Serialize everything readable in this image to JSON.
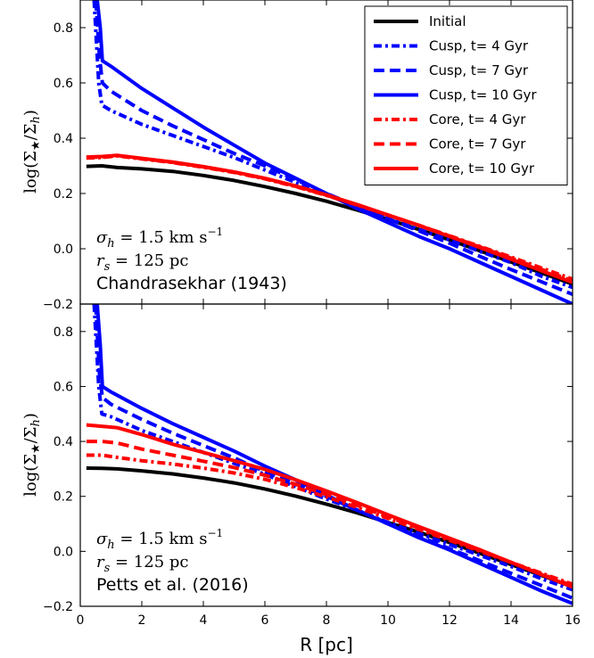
{
  "chart_data": [
    {
      "type": "line",
      "panel": "top",
      "ylabel": "log(Σ★/Σh)",
      "xlim": [
        0,
        16
      ],
      "ylim": [
        -0.2,
        0.9
      ],
      "yticks": [
        "−0.2",
        "0.0",
        "0.2",
        "0.4",
        "0.6",
        "0.8"
      ],
      "annotation": {
        "sigma": "σh = 1.5 km s⁻¹",
        "rs": "rs = 125 pc",
        "name": "Chandrasekhar (1943)"
      },
      "series": [
        {
          "name": "Initial",
          "color": "#000000",
          "style": "solid",
          "x": [
            0.2,
            0.7,
            1.2,
            2,
            3,
            4,
            5,
            6,
            7,
            8,
            9,
            10,
            11,
            12,
            13,
            14,
            15,
            16
          ],
          "y": [
            0.298,
            0.3,
            0.294,
            0.289,
            0.28,
            0.265,
            0.247,
            0.225,
            0.2,
            0.172,
            0.14,
            0.106,
            0.07,
            0.032,
            -0.008,
            -0.048,
            -0.088,
            -0.128
          ]
        },
        {
          "name": "Cusp, t= 4 Gyr",
          "color": "#0000ff",
          "style": "dashdot",
          "x": [
            0.45,
            0.6,
            0.7,
            1,
            2,
            3,
            4,
            5,
            6,
            7,
            8,
            9,
            10,
            11,
            12,
            13,
            14,
            15,
            16
          ],
          "y": [
            0.9,
            0.6,
            0.52,
            0.5,
            0.45,
            0.41,
            0.37,
            0.33,
            0.285,
            0.24,
            0.195,
            0.155,
            0.11,
            0.07,
            0.032,
            -0.01,
            -0.05,
            -0.1,
            -0.14
          ]
        },
        {
          "name": "Cusp, t= 7 Gyr",
          "color": "#0000ff",
          "style": "dashed",
          "x": [
            0.5,
            0.62,
            0.72,
            1,
            2,
            3,
            4,
            5,
            6,
            7,
            8,
            9,
            10,
            11,
            12,
            13,
            14,
            15,
            16
          ],
          "y": [
            0.9,
            0.7,
            0.6,
            0.57,
            0.5,
            0.445,
            0.395,
            0.345,
            0.3,
            0.25,
            0.2,
            0.155,
            0.108,
            0.065,
            0.02,
            -0.028,
            -0.075,
            -0.12,
            -0.165
          ]
        },
        {
          "name": "Cusp, t= 10 Gyr",
          "color": "#0000ff",
          "style": "solid",
          "x": [
            0.55,
            0.65,
            0.72,
            1,
            2,
            3,
            4,
            5,
            6,
            7,
            8,
            9,
            10,
            11,
            12,
            13,
            14,
            15,
            16
          ],
          "y": [
            0.9,
            0.8,
            0.68,
            0.66,
            0.58,
            0.51,
            0.44,
            0.375,
            0.31,
            0.255,
            0.2,
            0.145,
            0.095,
            0.045,
            0,
            -0.05,
            -0.1,
            -0.15,
            -0.2
          ]
        },
        {
          "name": "Core, t= 4 Gyr",
          "color": "#ff0000",
          "style": "dashdot",
          "x": [
            0.2,
            0.7,
            1.2,
            2,
            3,
            4,
            5,
            6,
            7,
            8,
            9,
            10,
            11,
            12,
            13,
            14,
            15,
            16
          ],
          "y": [
            0.328,
            0.33,
            0.336,
            0.325,
            0.312,
            0.295,
            0.276,
            0.253,
            0.225,
            0.193,
            0.158,
            0.122,
            0.085,
            0.047,
            0.008,
            -0.03,
            -0.07,
            -0.11
          ]
        },
        {
          "name": "Core, t= 7 Gyr",
          "color": "#ff0000",
          "style": "dashed",
          "x": [
            0.2,
            0.7,
            1.2,
            2,
            3,
            4,
            5,
            6,
            7,
            8,
            9,
            10,
            11,
            12,
            13,
            14,
            15,
            16
          ],
          "y": [
            0.33,
            0.332,
            0.337,
            0.326,
            0.313,
            0.296,
            0.277,
            0.254,
            0.226,
            0.194,
            0.159,
            0.122,
            0.085,
            0.046,
            0.006,
            -0.034,
            -0.075,
            -0.116
          ]
        },
        {
          "name": "Core, t= 10 Gyr",
          "color": "#ff0000",
          "style": "solid",
          "x": [
            0.2,
            0.7,
            1.2,
            2,
            3,
            4,
            5,
            6,
            7,
            8,
            9,
            10,
            11,
            12,
            13,
            14,
            15,
            16
          ],
          "y": [
            0.332,
            0.334,
            0.338,
            0.327,
            0.314,
            0.297,
            0.278,
            0.255,
            0.227,
            0.195,
            0.16,
            0.122,
            0.085,
            0.045,
            0.004,
            -0.038,
            -0.08,
            -0.122
          ]
        }
      ]
    },
    {
      "type": "line",
      "panel": "bottom",
      "xlabel": "R [pc]",
      "ylabel": "log(Σ★/Σh)",
      "xlim": [
        0,
        16
      ],
      "ylim": [
        -0.2,
        0.9
      ],
      "xticks": [
        "0",
        "2",
        "4",
        "6",
        "8",
        "10",
        "12",
        "14",
        "16"
      ],
      "yticks": [
        "−0.2",
        "0.0",
        "0.2",
        "0.4",
        "0.6",
        "0.8"
      ],
      "annotation": {
        "sigma": "σh = 1.5 km s⁻¹",
        "rs": "rs = 125 pc",
        "name": "Petts et al. (2016)"
      },
      "series": [
        {
          "name": "Initial",
          "color": "#000000",
          "style": "solid",
          "x": [
            0.2,
            0.7,
            1.2,
            2,
            3,
            4,
            5,
            6,
            7,
            8,
            9,
            10,
            11,
            12,
            13,
            14,
            15,
            16
          ],
          "y": [
            0.303,
            0.302,
            0.3,
            0.293,
            0.282,
            0.267,
            0.249,
            0.227,
            0.201,
            0.172,
            0.14,
            0.105,
            0.07,
            0.032,
            -0.008,
            -0.048,
            -0.088,
            -0.13
          ]
        },
        {
          "name": "Cusp, t= 4 Gyr",
          "color": "#0000ff",
          "style": "dashdot",
          "x": [
            0.45,
            0.6,
            0.7,
            1,
            2,
            3,
            4,
            5,
            6,
            7,
            8,
            9,
            10,
            11,
            12,
            13,
            14,
            15,
            16
          ],
          "y": [
            0.9,
            0.6,
            0.5,
            0.49,
            0.44,
            0.4,
            0.36,
            0.32,
            0.28,
            0.235,
            0.19,
            0.15,
            0.105,
            0.065,
            0.025,
            -0.015,
            -0.055,
            -0.1,
            -0.14
          ]
        },
        {
          "name": "Cusp, t= 7 Gyr",
          "color": "#0000ff",
          "style": "dashed",
          "x": [
            0.5,
            0.62,
            0.72,
            1,
            2,
            3,
            4,
            5,
            6,
            7,
            8,
            9,
            10,
            11,
            12,
            13,
            14,
            15,
            16
          ],
          "y": [
            0.9,
            0.65,
            0.56,
            0.535,
            0.48,
            0.43,
            0.385,
            0.34,
            0.29,
            0.245,
            0.2,
            0.15,
            0.1,
            0.055,
            0.01,
            -0.035,
            -0.08,
            -0.125,
            -0.17
          ]
        },
        {
          "name": "Cusp, t= 10 Gyr",
          "color": "#0000ff",
          "style": "solid",
          "x": [
            0.55,
            0.65,
            0.72,
            1,
            2,
            3,
            4,
            5,
            6,
            7,
            8,
            9,
            10,
            11,
            12,
            13,
            14,
            15,
            16
          ],
          "y": [
            0.9,
            0.75,
            0.6,
            0.58,
            0.52,
            0.465,
            0.415,
            0.365,
            0.31,
            0.26,
            0.205,
            0.15,
            0.1,
            0.05,
            0.005,
            -0.045,
            -0.095,
            -0.145,
            -0.19
          ]
        },
        {
          "name": "Core, t= 4 Gyr",
          "color": "#ff0000",
          "style": "dashdot",
          "x": [
            0.2,
            0.7,
            1.2,
            2,
            3,
            4,
            5,
            6,
            7,
            8,
            9,
            10,
            11,
            12,
            13,
            14,
            15,
            16
          ],
          "y": [
            0.35,
            0.35,
            0.342,
            0.33,
            0.318,
            0.303,
            0.285,
            0.262,
            0.232,
            0.198,
            0.16,
            0.12,
            0.08,
            0.04,
            0,
            -0.04,
            -0.08,
            -0.12
          ]
        },
        {
          "name": "Core, t= 7 Gyr",
          "color": "#ff0000",
          "style": "dashed",
          "x": [
            0.2,
            0.7,
            1.2,
            2,
            3,
            4,
            5,
            6,
            7,
            8,
            9,
            10,
            11,
            12,
            13,
            14,
            15,
            16
          ],
          "y": [
            0.4,
            0.4,
            0.394,
            0.372,
            0.35,
            0.328,
            0.305,
            0.277,
            0.244,
            0.207,
            0.167,
            0.125,
            0.085,
            0.045,
            0.003,
            -0.04,
            -0.083,
            -0.125
          ]
        },
        {
          "name": "Core, t= 10 Gyr",
          "color": "#ff0000",
          "style": "solid",
          "x": [
            0.2,
            0.7,
            1.2,
            2,
            3,
            4,
            5,
            6,
            7,
            8,
            9,
            10,
            11,
            12,
            13,
            14,
            15,
            16
          ],
          "y": [
            0.46,
            0.455,
            0.45,
            0.425,
            0.39,
            0.36,
            0.33,
            0.298,
            0.26,
            0.22,
            0.177,
            0.133,
            0.09,
            0.048,
            0.005,
            -0.04,
            -0.085,
            -0.13
          ]
        }
      ]
    }
  ]
}
